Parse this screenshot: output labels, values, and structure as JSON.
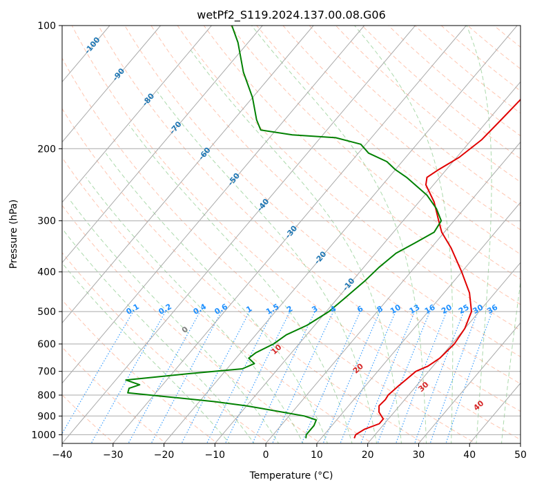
{
  "chart_data": {
    "type": "line",
    "title": "wetPf2_S119.2024.137.00.08.G06",
    "xlabel": "Temperature (°C)",
    "ylabel": "Pressure (hPa)",
    "xlim": [
      -40,
      50
    ],
    "ylim": [
      1050,
      100
    ],
    "y_scale": "log",
    "x_ticks": [
      -40,
      -30,
      -20,
      -10,
      0,
      10,
      20,
      30,
      40,
      50
    ],
    "x_tick_labels": [
      "−40",
      "−30",
      "−20",
      "−10",
      "0",
      "10",
      "20",
      "30",
      "40",
      "50"
    ],
    "y_ticks": [
      1000,
      900,
      800,
      700,
      600,
      500,
      400,
      300,
      200,
      100
    ],
    "y_tick_labels": [
      "1000",
      "900",
      "800",
      "700",
      "600",
      "500",
      "400",
      "300",
      "200",
      "100"
    ],
    "grid": true,
    "skew": true,
    "colors": {
      "temperature": "#e00000",
      "dewpoint": "#008000",
      "dry_adiabat": "#ff7f50",
      "moist_adiabat": "#2ca02c",
      "mixing_ratio": "#1e90ff",
      "isotherm_label": "#1f77b4",
      "grid": "#a9a9a9"
    },
    "series": [
      {
        "line": "temperature",
        "points": [
          [
            1020,
            16.5
          ],
          [
            1000,
            16.2
          ],
          [
            970,
            17.0
          ],
          [
            940,
            19.0
          ],
          [
            915,
            19.0
          ],
          [
            880,
            17.0
          ],
          [
            850,
            16.0
          ],
          [
            820,
            16.2
          ],
          [
            800,
            16.0
          ],
          [
            760,
            16.5
          ],
          [
            730,
            17.0
          ],
          [
            700,
            17.5
          ],
          [
            680,
            19.0
          ],
          [
            650,
            20.0
          ],
          [
            600,
            20.5
          ],
          [
            550,
            20.0
          ],
          [
            500,
            18.5
          ],
          [
            450,
            15.0
          ],
          [
            400,
            10.0
          ],
          [
            350,
            4.0
          ],
          [
            320,
            -0.5
          ],
          [
            300,
            -3.0
          ],
          [
            270,
            -7.0
          ],
          [
            245,
            -11.5
          ],
          [
            235,
            -12.5
          ],
          [
            225,
            -11.5
          ],
          [
            210,
            -9.5
          ],
          [
            190,
            -8.0
          ],
          [
            170,
            -7.5
          ],
          [
            150,
            -7.0
          ],
          [
            130,
            -6.0
          ],
          [
            110,
            -5.0
          ],
          [
            100,
            -4.5
          ]
        ]
      },
      {
        "line": "dewpoint",
        "points": [
          [
            1020,
            7.0
          ],
          [
            1000,
            6.5
          ],
          [
            950,
            6.5
          ],
          [
            920,
            6.0
          ],
          [
            900,
            3.0
          ],
          [
            880,
            -2.0
          ],
          [
            850,
            -10.0
          ],
          [
            830,
            -17.0
          ],
          [
            810,
            -26.0
          ],
          [
            790,
            -35.5
          ],
          [
            770,
            -36.0
          ],
          [
            755,
            -34.5
          ],
          [
            735,
            -38.0
          ],
          [
            710,
            -27.0
          ],
          [
            690,
            -17.0
          ],
          [
            670,
            -15.5
          ],
          [
            650,
            -17.5
          ],
          [
            630,
            -17.0
          ],
          [
            600,
            -15.0
          ],
          [
            570,
            -14.0
          ],
          [
            540,
            -11.5
          ],
          [
            500,
            -9.5
          ],
          [
            460,
            -8.5
          ],
          [
            420,
            -7.5
          ],
          [
            390,
            -7.0
          ],
          [
            360,
            -6.0
          ],
          [
            340,
            -4.0
          ],
          [
            320,
            -2.0
          ],
          [
            300,
            -2.5
          ],
          [
            280,
            -5.5
          ],
          [
            260,
            -9.5
          ],
          [
            235,
            -16.5
          ],
          [
            225,
            -20.0
          ],
          [
            215,
            -23.0
          ],
          [
            205,
            -28.0
          ],
          [
            195,
            -31.0
          ],
          [
            188,
            -37.0
          ],
          [
            185,
            -46.0
          ],
          [
            180,
            -53.0
          ],
          [
            170,
            -55.5
          ],
          [
            150,
            -60.0
          ],
          [
            130,
            -66.0
          ],
          [
            110,
            -72.0
          ],
          [
            100,
            -76.0
          ]
        ]
      }
    ],
    "isotherm_labels": [
      "-100",
      "-90",
      "-80",
      "-70",
      "-60",
      "-50",
      "-40",
      "-30",
      "-20",
      "-10"
    ],
    "isotherm_values": [
      -100,
      -90,
      -80,
      -70,
      -60,
      -50,
      -40,
      -30,
      -20,
      -10
    ],
    "mixing_ratio_labels": [
      "0.1",
      "0.2",
      "0.4",
      "0.6",
      "1",
      "1.5",
      "2",
      "3",
      "4",
      "6",
      "8",
      "10",
      "13",
      "16",
      "20",
      "25",
      "30",
      "36"
    ],
    "mixing_ratio_values": [
      0.1,
      0.2,
      0.4,
      0.6,
      1,
      1.5,
      2,
      3,
      4,
      6,
      8,
      10,
      13,
      16,
      20,
      25,
      30,
      36
    ],
    "moist_adiabat_labels": [
      "0",
      "10",
      "20",
      "30",
      "40"
    ],
    "moist_adiabat_values": [
      0,
      10,
      20,
      30,
      40
    ]
  }
}
